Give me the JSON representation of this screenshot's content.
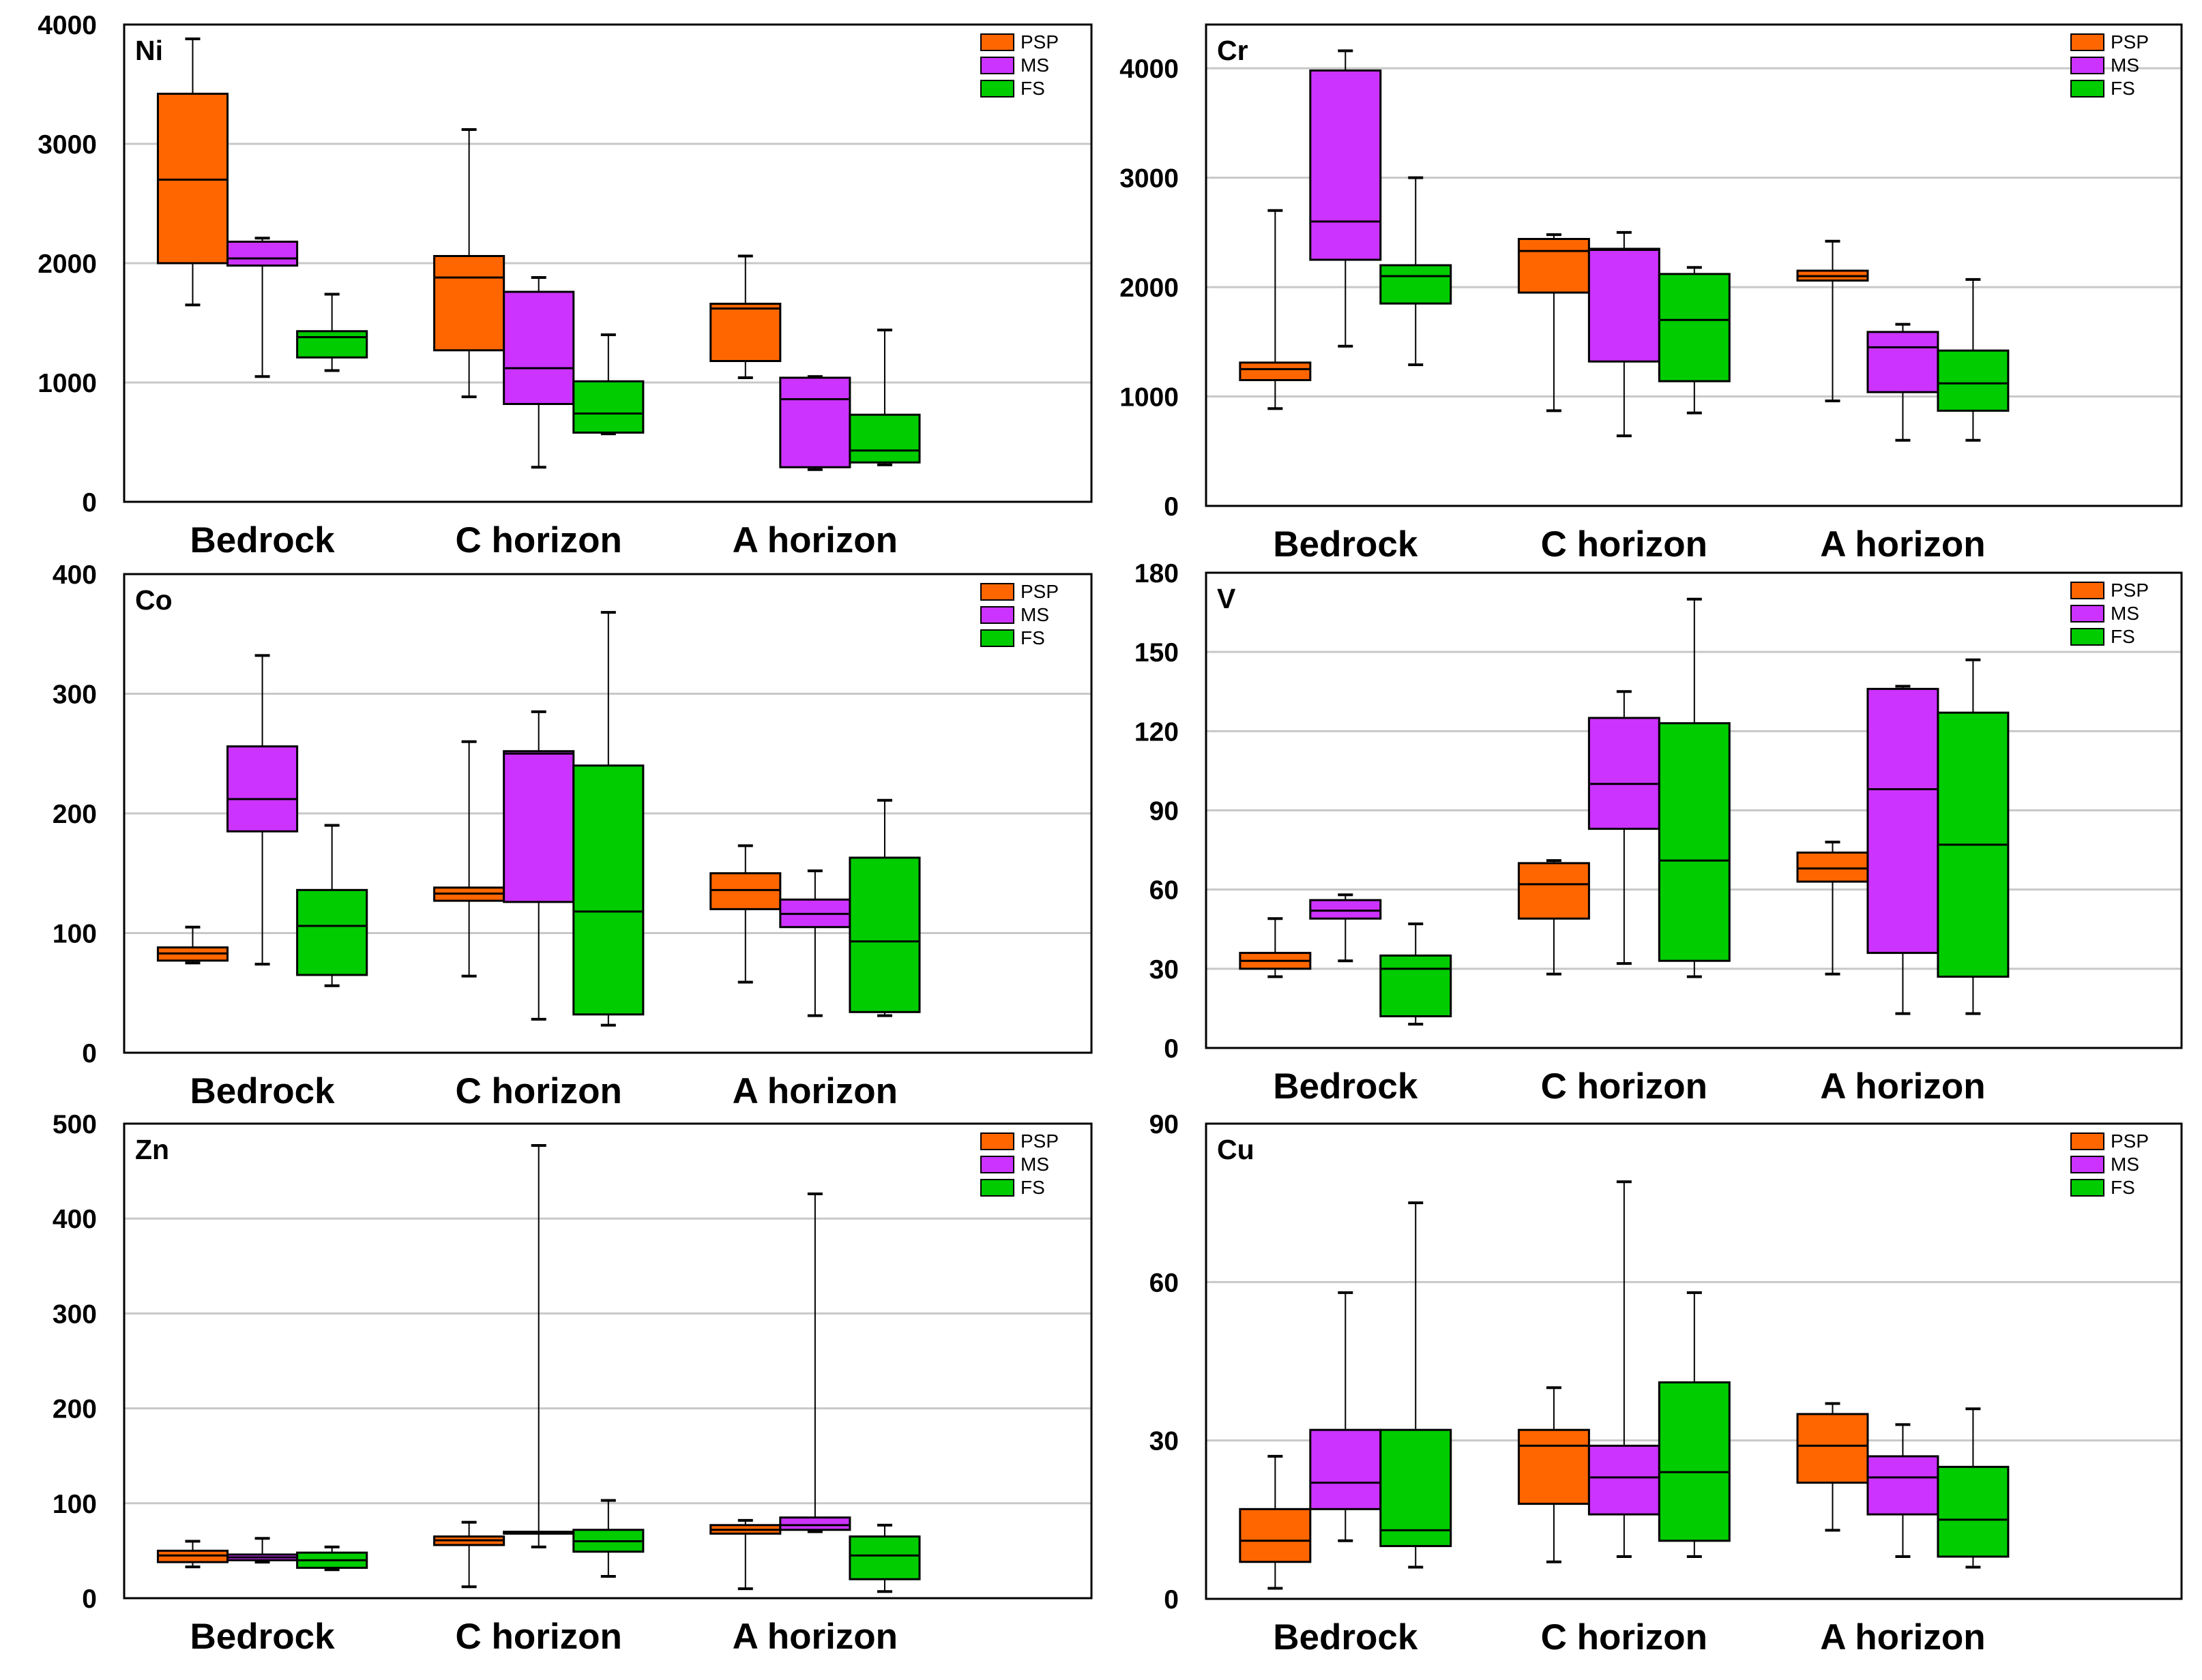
{
  "colors": {
    "PSP": "#ff6600",
    "MS": "#cc33ff",
    "FS": "#00cc00",
    "grid": "#c8c8c8"
  },
  "chart_data": [
    {
      "type": "boxplot",
      "title": "Ni",
      "categories": [
        "Bedrock",
        "C horizon",
        "A horizon"
      ],
      "legend": [
        "PSP",
        "MS",
        "FS"
      ],
      "ylim": [
        0,
        4000
      ],
      "yticks": [
        0,
        1000,
        2000,
        3000,
        4000
      ],
      "series": [
        {
          "name": "PSP",
          "boxes": [
            {
              "min": 1650,
              "q1": 2000,
              "median": 2700,
              "q3": 3420,
              "max": 3880
            },
            {
              "min": 880,
              "q1": 1270,
              "median": 1880,
              "q3": 2060,
              "max": 3120
            },
            {
              "min": 1040,
              "q1": 1180,
              "median": 1620,
              "q3": 1660,
              "max": 2060
            }
          ]
        },
        {
          "name": "MS",
          "boxes": [
            {
              "min": 1050,
              "q1": 1980,
              "median": 2040,
              "q3": 2180,
              "max": 2210
            },
            {
              "min": 290,
              "q1": 820,
              "median": 1120,
              "q3": 1760,
              "max": 1880
            },
            {
              "min": 270,
              "q1": 290,
              "median": 860,
              "q3": 1040,
              "max": 1050
            }
          ]
        },
        {
          "name": "FS",
          "boxes": [
            {
              "min": 1100,
              "q1": 1210,
              "median": 1380,
              "q3": 1430,
              "max": 1740
            },
            {
              "min": 570,
              "q1": 580,
              "median": 740,
              "q3": 1010,
              "max": 1400
            },
            {
              "min": 310,
              "q1": 330,
              "median": 430,
              "q3": 730,
              "max": 1440
            }
          ]
        }
      ]
    },
    {
      "type": "boxplot",
      "title": "Cr",
      "categories": [
        "Bedrock",
        "C horizon",
        "A horizon"
      ],
      "legend": [
        "PSP",
        "MS",
        "FS"
      ],
      "ylim": [
        0,
        4400
      ],
      "yticks": [
        0,
        1000,
        2000,
        3000,
        4000
      ],
      "series": [
        {
          "name": "PSP",
          "boxes": [
            {
              "min": 890,
              "q1": 1150,
              "median": 1250,
              "q3": 1310,
              "max": 2700
            },
            {
              "min": 870,
              "q1": 1950,
              "median": 2330,
              "q3": 2440,
              "max": 2480
            },
            {
              "min": 960,
              "q1": 2060,
              "median": 2100,
              "q3": 2150,
              "max": 2420
            }
          ]
        },
        {
          "name": "MS",
          "boxes": [
            {
              "min": 1460,
              "q1": 2250,
              "median": 2600,
              "q3": 3980,
              "max": 4160
            },
            {
              "min": 640,
              "q1": 1320,
              "median": 2340,
              "q3": 2350,
              "max": 2500
            },
            {
              "min": 600,
              "q1": 1040,
              "median": 1450,
              "q3": 1590,
              "max": 1660
            }
          ]
        },
        {
          "name": "FS",
          "boxes": [
            {
              "min": 1290,
              "q1": 1850,
              "median": 2100,
              "q3": 2200,
              "max": 3000
            },
            {
              "min": 850,
              "q1": 1140,
              "median": 1700,
              "q3": 2120,
              "max": 2180
            },
            {
              "min": 600,
              "q1": 870,
              "median": 1120,
              "q3": 1420,
              "max": 2070
            }
          ]
        }
      ]
    },
    {
      "type": "boxplot",
      "title": "Co",
      "categories": [
        "Bedrock",
        "C horizon",
        "A horizon"
      ],
      "legend": [
        "PSP",
        "MS",
        "FS"
      ],
      "ylim": [
        0,
        400
      ],
      "yticks": [
        0,
        100,
        200,
        300,
        400
      ],
      "series": [
        {
          "name": "PSP",
          "boxes": [
            {
              "min": 75,
              "q1": 77,
              "median": 83,
              "q3": 88,
              "max": 105
            },
            {
              "min": 64,
              "q1": 127,
              "median": 133,
              "q3": 138,
              "max": 260
            },
            {
              "min": 59,
              "q1": 120,
              "median": 136,
              "q3": 150,
              "max": 173
            }
          ]
        },
        {
          "name": "MS",
          "boxes": [
            {
              "min": 74,
              "q1": 185,
              "median": 212,
              "q3": 256,
              "max": 332
            },
            {
              "min": 28,
              "q1": 126,
              "median": 250,
              "q3": 252,
              "max": 285
            },
            {
              "min": 31,
              "q1": 105,
              "median": 116,
              "q3": 128,
              "max": 152
            }
          ]
        },
        {
          "name": "FS",
          "boxes": [
            {
              "min": 56,
              "q1": 65,
              "median": 106,
              "q3": 136,
              "max": 190
            },
            {
              "min": 23,
              "q1": 32,
              "median": 118,
              "q3": 240,
              "max": 368
            },
            {
              "min": 31,
              "q1": 34,
              "median": 93,
              "q3": 163,
              "max": 211
            }
          ]
        }
      ]
    },
    {
      "type": "boxplot",
      "title": "V",
      "categories": [
        "Bedrock",
        "C horizon",
        "A horizon"
      ],
      "legend": [
        "PSP",
        "MS",
        "FS"
      ],
      "ylim": [
        0,
        180
      ],
      "yticks": [
        0,
        30,
        60,
        90,
        120,
        150,
        180
      ],
      "series": [
        {
          "name": "PSP",
          "boxes": [
            {
              "min": 27,
              "q1": 30,
              "median": 33,
              "q3": 36,
              "max": 49
            },
            {
              "min": 28,
              "q1": 49,
              "median": 62,
              "q3": 70,
              "max": 71
            },
            {
              "min": 28,
              "q1": 63,
              "median": 68,
              "q3": 74,
              "max": 78
            }
          ]
        },
        {
          "name": "MS",
          "boxes": [
            {
              "min": 33,
              "q1": 49,
              "median": 52,
              "q3": 56,
              "max": 58
            },
            {
              "min": 32,
              "q1": 83,
              "median": 100,
              "q3": 125,
              "max": 135
            },
            {
              "min": 13,
              "q1": 36,
              "median": 98,
              "q3": 136,
              "max": 137
            }
          ]
        },
        {
          "name": "FS",
          "boxes": [
            {
              "min": 9,
              "q1": 12,
              "median": 30,
              "q3": 35,
              "max": 47
            },
            {
              "min": 27,
              "q1": 33,
              "median": 71,
              "q3": 123,
              "max": 170
            },
            {
              "min": 13,
              "q1": 27,
              "median": 77,
              "q3": 127,
              "max": 147
            }
          ]
        }
      ]
    },
    {
      "type": "boxplot",
      "title": "Zn",
      "categories": [
        "Bedrock",
        "C horizon",
        "A horizon"
      ],
      "legend": [
        "PSP",
        "MS",
        "FS"
      ],
      "ylim": [
        0,
        500
      ],
      "yticks": [
        0,
        100,
        200,
        300,
        400,
        500
      ],
      "series": [
        {
          "name": "PSP",
          "boxes": [
            {
              "min": 33,
              "q1": 38,
              "median": 45,
              "q3": 50,
              "max": 60
            },
            {
              "min": 12,
              "q1": 56,
              "median": 61,
              "q3": 65,
              "max": 80
            },
            {
              "min": 10,
              "q1": 68,
              "median": 72,
              "q3": 77,
              "max": 82
            }
          ]
        },
        {
          "name": "MS",
          "boxes": [
            {
              "min": 38,
              "q1": 40,
              "median": 43,
              "q3": 46,
              "max": 63
            },
            {
              "min": 54,
              "q1": 68,
              "median": 69,
              "q3": 70,
              "max": 477
            },
            {
              "min": 70,
              "q1": 72,
              "median": 77,
              "q3": 85,
              "max": 426
            }
          ]
        },
        {
          "name": "FS",
          "boxes": [
            {
              "min": 30,
              "q1": 32,
              "median": 40,
              "q3": 48,
              "max": 54
            },
            {
              "min": 23,
              "q1": 49,
              "median": 60,
              "q3": 72,
              "max": 103
            },
            {
              "min": 7,
              "q1": 20,
              "median": 45,
              "q3": 65,
              "max": 77
            }
          ]
        }
      ]
    },
    {
      "type": "boxplot",
      "title": "Cu",
      "categories": [
        "Bedrock",
        "C horizon",
        "A horizon"
      ],
      "legend": [
        "PSP",
        "MS",
        "FS"
      ],
      "ylim": [
        0,
        90
      ],
      "yticks": [
        0,
        30,
        60,
        90
      ],
      "series": [
        {
          "name": "PSP",
          "boxes": [
            {
              "min": 2,
              "q1": 7,
              "median": 11,
              "q3": 17,
              "max": 27
            },
            {
              "min": 7,
              "q1": 18,
              "median": 29,
              "q3": 32,
              "max": 40
            },
            {
              "min": 13,
              "q1": 22,
              "median": 29,
              "q3": 35,
              "max": 37
            }
          ]
        },
        {
          "name": "MS",
          "boxes": [
            {
              "min": 11,
              "q1": 17,
              "median": 22,
              "q3": 32,
              "max": 58
            },
            {
              "min": 8,
              "q1": 16,
              "median": 23,
              "q3": 29,
              "max": 79
            },
            {
              "min": 8,
              "q1": 16,
              "median": 23,
              "q3": 27,
              "max": 33
            }
          ]
        },
        {
          "name": "FS",
          "boxes": [
            {
              "min": 6,
              "q1": 10,
              "median": 13,
              "q3": 32,
              "max": 75
            },
            {
              "min": 8,
              "q1": 11,
              "median": 24,
              "q3": 41,
              "max": 58
            },
            {
              "min": 6,
              "q1": 8,
              "median": 15,
              "q3": 25,
              "max": 36
            }
          ]
        }
      ]
    }
  ]
}
